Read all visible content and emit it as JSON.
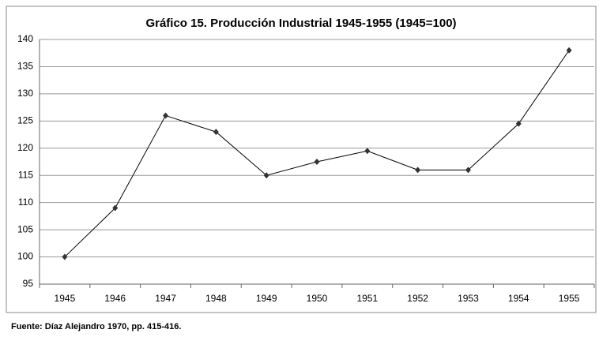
{
  "chart_data": {
    "type": "line",
    "title": "Gráfico 15. Producción Industrial 1945-1955 (1945=100)",
    "note": "Fuente: Díaz Alejandro 1970, pp. 415-416.",
    "categories": [
      "1945",
      "1946",
      "1947",
      "1948",
      "1949",
      "1950",
      "1951",
      "1952",
      "1953",
      "1954",
      "1955"
    ],
    "values": [
      100,
      109,
      126,
      123,
      115,
      117.5,
      119.5,
      116,
      116,
      124.5,
      138
    ],
    "color": "#000000",
    "marker_color": "#333333",
    "ylim": [
      95,
      140
    ],
    "yticks": [
      95,
      100,
      105,
      110,
      115,
      120,
      125,
      130,
      135,
      140
    ],
    "grid": true
  }
}
